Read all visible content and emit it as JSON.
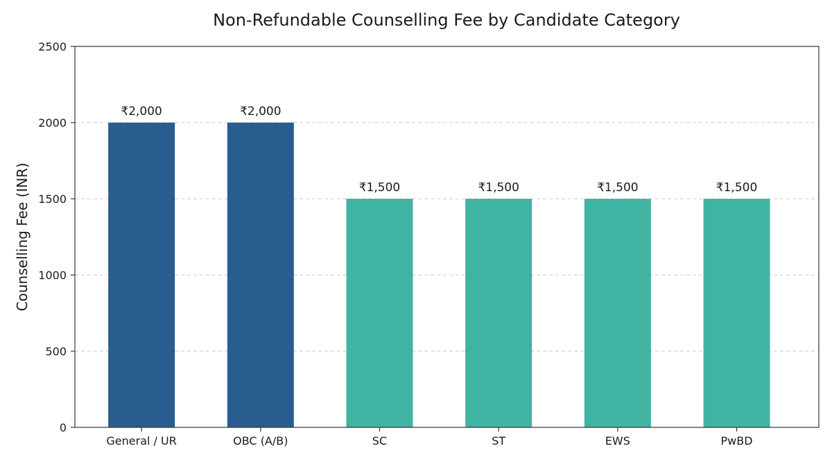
{
  "chart_data": {
    "type": "bar",
    "title": "Non-Refundable Counselling Fee by Candidate Category",
    "xlabel": "",
    "ylabel": "Counselling Fee (INR)",
    "ylim": [
      0,
      2500
    ],
    "yticks": [
      0,
      500,
      1000,
      1500,
      2000,
      2500
    ],
    "grid": true,
    "categories": [
      "General / UR",
      "OBC (A/B)",
      "SC",
      "ST",
      "EWS",
      "PwBD"
    ],
    "values": [
      2000,
      2000,
      1500,
      1500,
      1500,
      1500
    ],
    "data_labels": [
      "₹2,000",
      "₹2,000",
      "₹1,500",
      "₹1,500",
      "₹1,500",
      "₹1,500"
    ],
    "bar_colors": [
      "#2a5d8f",
      "#2a5d8f",
      "#40b3a2",
      "#40b3a2",
      "#40b3a2",
      "#40b3a2"
    ]
  }
}
